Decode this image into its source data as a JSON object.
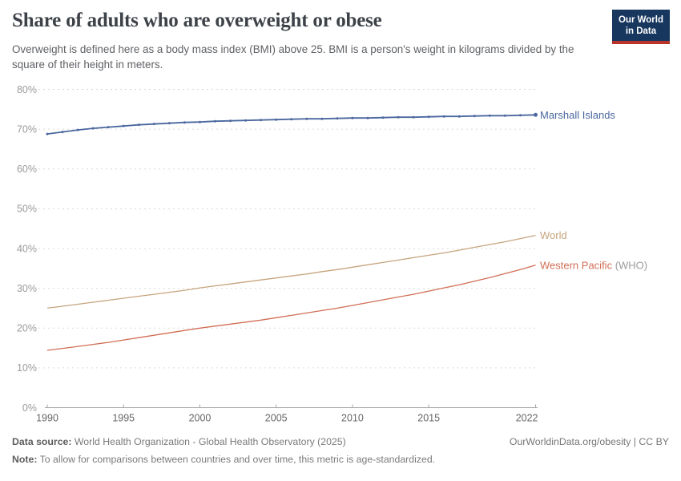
{
  "header": {
    "title": "Share of adults who are overweight or obese",
    "subtitle": "Overweight is defined here as a body mass index (BMI) above 25. BMI is a person's weight in kilograms divided by the square of their height in meters.",
    "logo": {
      "line1": "Our World",
      "line2": "in Data",
      "bg_color": "#17375e",
      "accent_color": "#b9332c"
    }
  },
  "chart_data": {
    "type": "line",
    "title": "Share of adults who are overweight or obese",
    "xlabel": "",
    "ylabel": "",
    "xlim": [
      1990,
      2022
    ],
    "ylim": [
      0,
      80
    ],
    "grid": "horizontal-dashed",
    "legend_position": "end-of-line-labels",
    "x": [
      1990,
      1991,
      1992,
      1993,
      1994,
      1995,
      1996,
      1997,
      1998,
      1999,
      2000,
      2001,
      2002,
      2003,
      2004,
      2005,
      2006,
      2007,
      2008,
      2009,
      2010,
      2011,
      2012,
      2013,
      2014,
      2015,
      2016,
      2017,
      2018,
      2019,
      2020,
      2021,
      2022
    ],
    "x_ticks": [
      1990,
      1995,
      2000,
      2005,
      2010,
      2015,
      2022
    ],
    "y_ticks": [
      0,
      10,
      20,
      30,
      40,
      50,
      60,
      70,
      80
    ],
    "y_tick_labels": [
      "0%",
      "10%",
      "20%",
      "30%",
      "40%",
      "50%",
      "60%",
      "70%",
      "80%"
    ],
    "series": [
      {
        "name": "Marshall Islands",
        "suffix": "",
        "color": "#4a679e",
        "markers": true,
        "values": [
          68.8,
          69.3,
          69.8,
          70.2,
          70.5,
          70.8,
          71.1,
          71.3,
          71.5,
          71.7,
          71.8,
          72.0,
          72.1,
          72.2,
          72.3,
          72.4,
          72.5,
          72.6,
          72.6,
          72.7,
          72.8,
          72.8,
          72.9,
          73.0,
          73.0,
          73.1,
          73.2,
          73.2,
          73.3,
          73.4,
          73.4,
          73.5,
          73.6
        ]
      },
      {
        "name": "World",
        "suffix": "",
        "color": "#c7a47e",
        "markers": false,
        "values": [
          25.0,
          25.5,
          26.0,
          26.5,
          27.0,
          27.5,
          28.0,
          28.5,
          29.0,
          29.5,
          30.1,
          30.6,
          31.1,
          31.6,
          32.1,
          32.6,
          33.1,
          33.6,
          34.2,
          34.7,
          35.3,
          35.9,
          36.5,
          37.1,
          37.7,
          38.3,
          38.9,
          39.6,
          40.3,
          41.0,
          41.7,
          42.5,
          43.3
        ]
      },
      {
        "name": "Western Pacific",
        "suffix": " (WHO)",
        "color": "#d26e55",
        "markers": false,
        "values": [
          14.4,
          14.9,
          15.4,
          15.9,
          16.4,
          17.0,
          17.6,
          18.2,
          18.8,
          19.4,
          20.0,
          20.5,
          21.0,
          21.5,
          22.0,
          22.6,
          23.2,
          23.8,
          24.4,
          25.0,
          25.7,
          26.4,
          27.1,
          27.8,
          28.5,
          29.3,
          30.1,
          30.9,
          31.8,
          32.7,
          33.7,
          34.7,
          35.8
        ]
      }
    ],
    "colors": {
      "gridline": "#dadada",
      "axis": "#a7a7a7",
      "y_tick_label": "#9b9b9b",
      "x_tick_label": "#666666",
      "label_suffix": "#9b9b9b"
    }
  },
  "footer": {
    "source_label": "Data source:",
    "source_text": " World Health Organization - Global Health Observatory (2025)",
    "note_label": "Note:",
    "note_text": " To allow for comparisons between countries and over time, this metric is age-standardized.",
    "rights": "OurWorldinData.org/obesity | CC BY"
  }
}
